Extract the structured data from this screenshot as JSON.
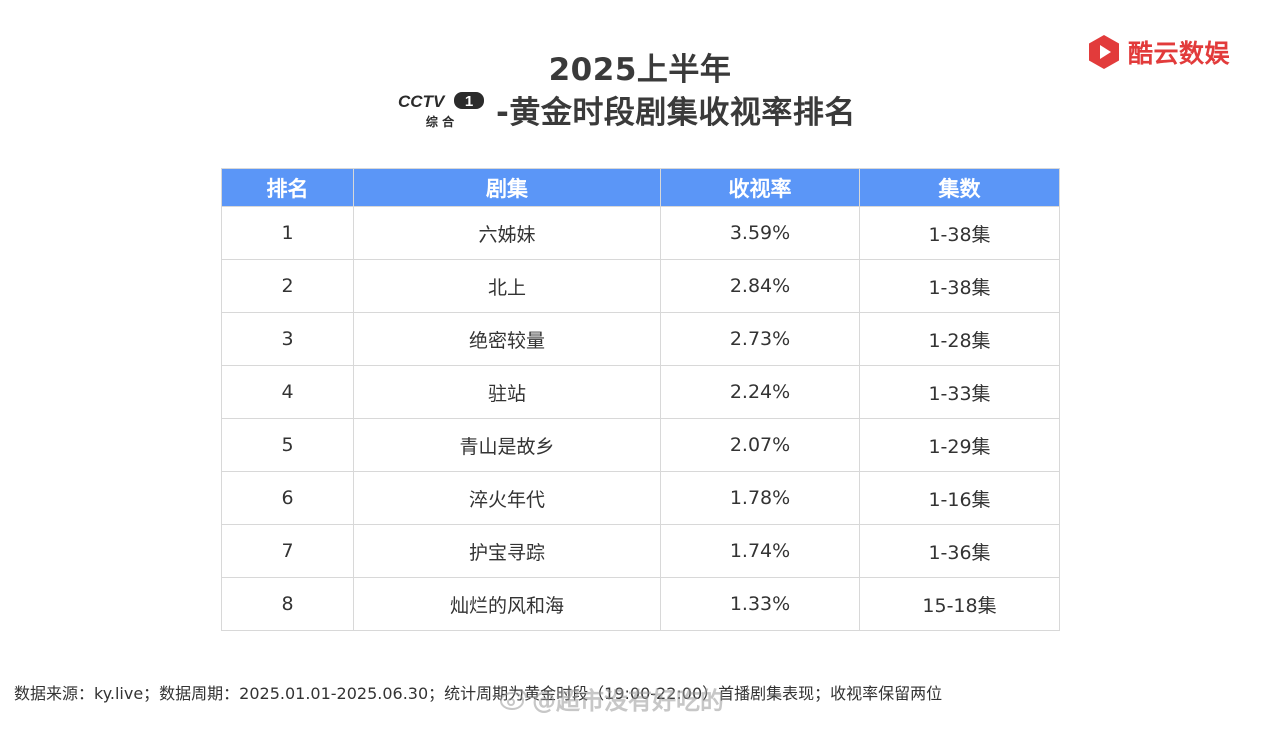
{
  "header": {
    "title_line1": "2025上半年",
    "channel_logo_text": "CCTV1",
    "channel_logo_subtext": "综合",
    "title_suffix": "-黄金时段剧集收视率排名"
  },
  "brand": {
    "icon": "kuyun-logo-icon",
    "name": "酷云数娱",
    "color": "#e23b3b"
  },
  "table": {
    "header_color": "#5b96f7",
    "columns": [
      "排名",
      "剧集",
      "收视率",
      "集数"
    ],
    "rows": [
      {
        "rank": "1",
        "drama": "六姊妹",
        "rating": "3.59%",
        "episodes": "1-38集"
      },
      {
        "rank": "2",
        "drama": "北上",
        "rating": "2.84%",
        "episodes": "1-38集"
      },
      {
        "rank": "3",
        "drama": "绝密较量",
        "rating": "2.73%",
        "episodes": "1-28集"
      },
      {
        "rank": "4",
        "drama": "驻站",
        "rating": "2.24%",
        "episodes": "1-33集"
      },
      {
        "rank": "5",
        "drama": "青山是故乡",
        "rating": "2.07%",
        "episodes": "1-29集"
      },
      {
        "rank": "6",
        "drama": "淬火年代",
        "rating": "1.78%",
        "episodes": "1-16集"
      },
      {
        "rank": "7",
        "drama": "护宝寻踪",
        "rating": "1.74%",
        "episodes": "1-36集"
      },
      {
        "rank": "8",
        "drama": "灿烂的风和海",
        "rating": "1.33%",
        "episodes": "15-18集"
      }
    ]
  },
  "footer": {
    "note": "数据来源：ky.live；数据周期：2025.01.01-2025.06.30；统计周期为黄金时段（19:00-22:00）首播剧集表现；收视率保留两位"
  },
  "watermark": {
    "icon": "weibo-icon",
    "text": "@超市没有好吃的"
  }
}
